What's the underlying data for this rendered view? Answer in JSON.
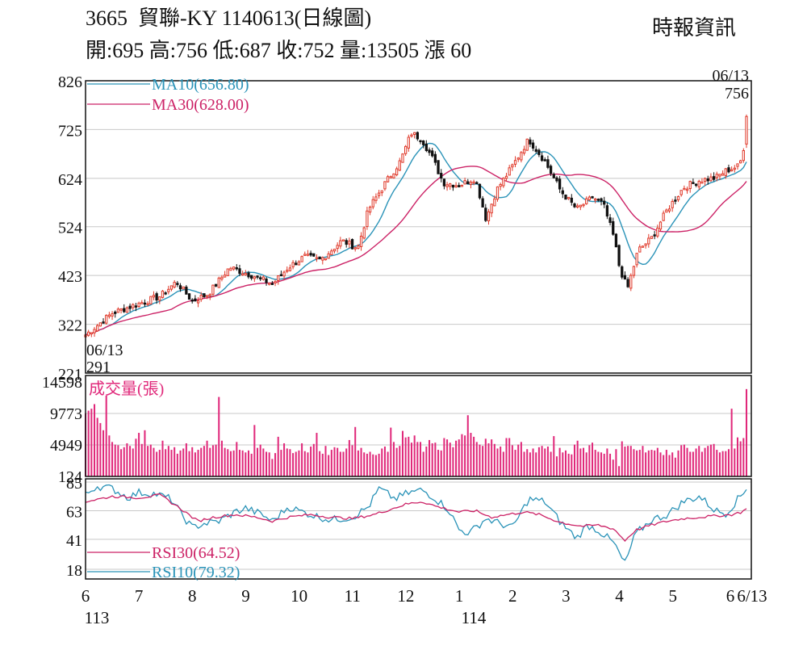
{
  "header": {
    "code": "3665",
    "title": "貿聯-KY 1140613(日線圖)",
    "source": "時報資訊",
    "quote": {
      "open_label": "開:",
      "open": "695",
      "high_label": "高:",
      "high": "756",
      "low_label": "低:",
      "low": "687",
      "close_label": "收:",
      "close": "752",
      "volume_label": "量:",
      "volume": "13505",
      "change_label": "漲",
      "change": "60"
    }
  },
  "colors": {
    "up": "#e0392a",
    "down": "#111111",
    "ma10": "#2a93b8",
    "ma30": "#cc2266",
    "volume": "#e0287a",
    "rsi30": "#cc2266",
    "rsi10": "#2a93b8",
    "grid": "#c8c8c8"
  },
  "chart_data": [
    {
      "type": "candlestick",
      "title": "",
      "ylim": [
        221,
        826
      ],
      "yticks": [
        826,
        725,
        624,
        524,
        423,
        322,
        221
      ],
      "grid": true,
      "legend": [
        {
          "name": "MA10",
          "label": "MA10(656.80)"
        },
        {
          "name": "MA30",
          "label": "MA30(628.00)"
        }
      ],
      "annotations": [
        {
          "date": "06/13",
          "value": "291",
          "label_date": "06/13",
          "label_value": "291",
          "position": "bottom-left"
        },
        {
          "date": "06/13",
          "value": "756",
          "label_date": "06/13",
          "label_value": "756",
          "position": "top-right"
        }
      ],
      "price_path": [
        {
          "m": 6.0,
          "p": 300
        },
        {
          "m": 6.5,
          "p": 345
        },
        {
          "m": 7.0,
          "p": 365
        },
        {
          "m": 7.4,
          "p": 380
        },
        {
          "m": 7.7,
          "p": 410
        },
        {
          "m": 8.0,
          "p": 370
        },
        {
          "m": 8.3,
          "p": 385
        },
        {
          "m": 8.7,
          "p": 440
        },
        {
          "m": 9.2,
          "p": 420
        },
        {
          "m": 9.5,
          "p": 405
        },
        {
          "m": 9.8,
          "p": 440
        },
        {
          "m": 10.1,
          "p": 462
        },
        {
          "m": 10.4,
          "p": 455
        },
        {
          "m": 10.8,
          "p": 495
        },
        {
          "m": 11.1,
          "p": 480
        },
        {
          "m": 11.3,
          "p": 560
        },
        {
          "m": 11.6,
          "p": 612
        },
        {
          "m": 11.9,
          "p": 660
        },
        {
          "m": 12.1,
          "p": 718
        },
        {
          "m": 12.3,
          "p": 705
        },
        {
          "m": 12.5,
          "p": 665
        },
        {
          "m": 12.7,
          "p": 615
        },
        {
          "m": 13.0,
          "p": 610
        },
        {
          "m": 13.3,
          "p": 625
        },
        {
          "m": 13.5,
          "p": 540
        },
        {
          "m": 13.7,
          "p": 600
        },
        {
          "m": 14.0,
          "p": 650
        },
        {
          "m": 14.3,
          "p": 705
        },
        {
          "m": 14.6,
          "p": 660
        },
        {
          "m": 14.9,
          "p": 598
        },
        {
          "m": 15.2,
          "p": 560
        },
        {
          "m": 15.5,
          "p": 585
        },
        {
          "m": 15.7,
          "p": 570
        },
        {
          "m": 15.9,
          "p": 500
        },
        {
          "m": 16.0,
          "p": 440
        },
        {
          "m": 16.15,
          "p": 395
        },
        {
          "m": 16.35,
          "p": 475
        },
        {
          "m": 16.6,
          "p": 500
        },
        {
          "m": 16.9,
          "p": 560
        },
        {
          "m": 17.2,
          "p": 605
        },
        {
          "m": 17.5,
          "p": 620
        },
        {
          "m": 17.8,
          "p": 625
        },
        {
          "m": 18.0,
          "p": 640
        },
        {
          "m": 18.25,
          "p": 650
        },
        {
          "m": 18.34,
          "p": 695
        },
        {
          "m": 18.38,
          "p": 752
        }
      ],
      "last_candle": {
        "open": 695,
        "high": 756,
        "low": 687,
        "close": 752
      }
    },
    {
      "type": "bar",
      "title": "成交量(張)",
      "ylim": [
        124,
        14598
      ],
      "yticks": [
        14598,
        9773,
        4949,
        124
      ],
      "grid": true,
      "values": [
        9800,
        10200,
        10500,
        11200,
        9100,
        8300,
        7200,
        12500,
        6400,
        5400,
        5000,
        4900,
        4300,
        4600,
        5200,
        4800,
        4400,
        5900,
        6800,
        5100,
        7200,
        4800,
        5000,
        4500,
        3900,
        4200,
        5600,
        4300,
        4800,
        4200,
        4600,
        3600,
        4100,
        4400,
        5200,
        4000,
        4600,
        3800,
        4200,
        4500,
        4800,
        5600,
        4500,
        4900,
        5000,
        12300,
        5600,
        4500,
        4300,
        4000,
        4100,
        5400,
        4200,
        4100,
        3800,
        4100,
        3600,
        8000,
        4500,
        5000,
        4400,
        3900,
        3800,
        2800,
        3700,
        6200,
        4200,
        5200,
        4400,
        4300,
        3700,
        3900,
        4100,
        5200,
        4000,
        3800,
        4700,
        5100,
        6800,
        4000,
        3600,
        4800,
        3400,
        4200,
        4600,
        4500,
        3900,
        3900,
        4400,
        5700,
        4900,
        7700,
        4100,
        4500,
        3800,
        3600,
        3900,
        3500,
        3400,
        3600,
        4400,
        4700,
        3900,
        7600,
        5400,
        4500,
        4800,
        7100,
        6100,
        6200,
        5300,
        6400,
        5400,
        5400,
        3900,
        4700,
        5700,
        5200,
        5300,
        4200,
        4100,
        6000,
        5800,
        5300,
        4600,
        5600,
        5800,
        6600,
        6400,
        9500,
        6800,
        6200,
        5400,
        5000,
        4800,
        5900,
        5200,
        5800,
        5100,
        4400,
        4700,
        3900,
        6000,
        6000,
        4900,
        4200,
        5000,
        5400,
        3900,
        4300,
        3800,
        4400,
        3800,
        4600,
        4800,
        4400,
        4700,
        3900,
        6300,
        3200,
        4500,
        3800,
        4100,
        3600,
        3500,
        5000,
        5600,
        4400,
        4500,
        3800,
        4900,
        5300,
        4200,
        3900,
        3800,
        3600,
        4400,
        3600,
        2700,
        4300,
        1700,
        5500,
        4700,
        4800,
        4800,
        4300,
        4100,
        4200,
        4800,
        3800,
        4100,
        4200,
        4100,
        4500,
        3800,
        3400,
        4200,
        3400,
        3800,
        3000,
        4100,
        4900,
        5000,
        4500,
        3900,
        3900,
        4400,
        4800,
        3900,
        4500,
        4800,
        5000,
        5100,
        4200,
        3800,
        4000,
        4000,
        4300,
        10500,
        4400,
        6100,
        5500,
        6000,
        13505
      ],
      "last_value": 13505
    },
    {
      "type": "line",
      "title": "",
      "ylim": [
        18,
        85
      ],
      "yticks": [
        85,
        63,
        41,
        18
      ],
      "grid": true,
      "series": [
        {
          "name": "RSI30",
          "label": "RSI30(64.52)",
          "last": 64.52,
          "keypoints": [
            [
              6.0,
              70
            ],
            [
              6.5,
              74
            ],
            [
              7.0,
              73
            ],
            [
              7.4,
              75
            ],
            [
              7.8,
              64
            ],
            [
              8.1,
              55
            ],
            [
              8.4,
              58
            ],
            [
              8.8,
              60
            ],
            [
              9.2,
              58
            ],
            [
              9.5,
              55
            ],
            [
              9.8,
              58
            ],
            [
              10.2,
              60
            ],
            [
              10.6,
              58
            ],
            [
              11.0,
              57
            ],
            [
              11.4,
              60
            ],
            [
              11.7,
              64
            ],
            [
              12.0,
              68
            ],
            [
              12.3,
              70
            ],
            [
              12.6,
              66
            ],
            [
              13.0,
              62
            ],
            [
              13.3,
              63
            ],
            [
              13.6,
              58
            ],
            [
              13.9,
              60
            ],
            [
              14.2,
              62
            ],
            [
              14.5,
              60
            ],
            [
              14.9,
              54
            ],
            [
              15.3,
              51
            ],
            [
              15.6,
              52
            ],
            [
              15.9,
              49
            ],
            [
              16.1,
              40
            ],
            [
              16.3,
              48
            ],
            [
              16.6,
              52
            ],
            [
              16.9,
              55
            ],
            [
              17.2,
              57
            ],
            [
              17.5,
              58
            ],
            [
              17.8,
              59
            ],
            [
              18.1,
              60
            ],
            [
              18.3,
              62
            ],
            [
              18.38,
              64.52
            ]
          ]
        },
        {
          "name": "RSI10",
          "label": "RSI10(79.32)",
          "last": 79.32,
          "keypoints": [
            [
              6.0,
              75
            ],
            [
              6.2,
              82
            ],
            [
              6.5,
              80
            ],
            [
              6.8,
              73
            ],
            [
              7.0,
              77
            ],
            [
              7.3,
              76
            ],
            [
              7.6,
              72
            ],
            [
              7.8,
              60
            ],
            [
              8.0,
              50
            ],
            [
              8.2,
              53
            ],
            [
              8.5,
              55
            ],
            [
              8.8,
              62
            ],
            [
              9.0,
              65
            ],
            [
              9.3,
              60
            ],
            [
              9.5,
              55
            ],
            [
              9.8,
              66
            ],
            [
              10.0,
              63
            ],
            [
              10.3,
              59
            ],
            [
              10.6,
              56
            ],
            [
              11.0,
              58
            ],
            [
              11.3,
              66
            ],
            [
              11.5,
              80
            ],
            [
              11.8,
              72
            ],
            [
              12.0,
              76
            ],
            [
              12.3,
              79
            ],
            [
              12.5,
              74
            ],
            [
              12.8,
              64
            ],
            [
              13.0,
              48
            ],
            [
              13.2,
              46
            ],
            [
              13.5,
              57
            ],
            [
              13.7,
              54
            ],
            [
              14.0,
              50
            ],
            [
              14.3,
              72
            ],
            [
              14.6,
              70
            ],
            [
              14.9,
              54
            ],
            [
              15.2,
              42
            ],
            [
              15.4,
              52
            ],
            [
              15.6,
              48
            ],
            [
              15.9,
              38
            ],
            [
              16.1,
              22
            ],
            [
              16.3,
              45
            ],
            [
              16.6,
              56
            ],
            [
              16.9,
              60
            ],
            [
              17.2,
              70
            ],
            [
              17.5,
              74
            ],
            [
              17.8,
              63
            ],
            [
              18.0,
              61
            ],
            [
              18.2,
              71
            ],
            [
              18.38,
              79.32
            ]
          ]
        }
      ]
    }
  ],
  "x_axis": {
    "months": [
      "6",
      "7",
      "8",
      "9",
      "10",
      "11",
      "12",
      "1",
      "2",
      "3",
      "4",
      "5",
      "6"
    ],
    "years": [
      "113",
      "114"
    ],
    "end_date": "6/13"
  }
}
